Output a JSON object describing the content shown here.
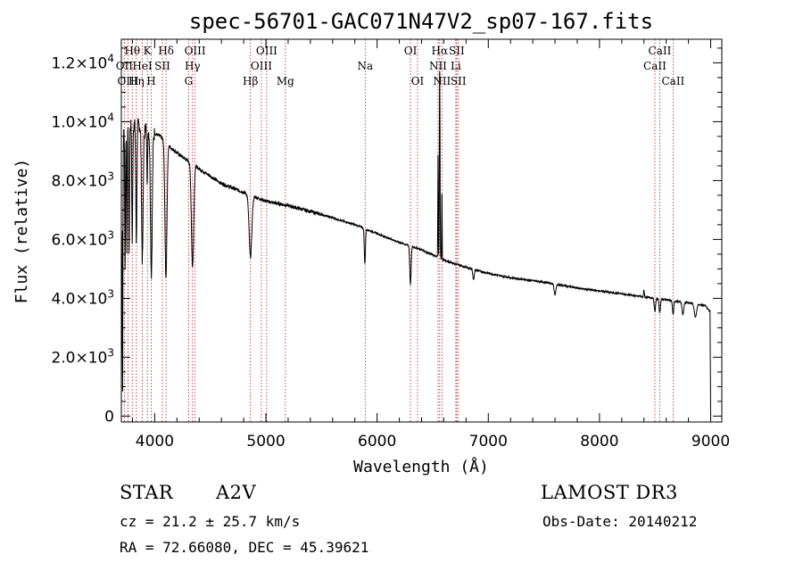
{
  "chart_data": {
    "type": "line",
    "title": "spec-56701-GAC071N47V2_sp07-167.fits",
    "xlabel": "Wavelength (Å)",
    "ylabel": "Flux (relative)",
    "xlim": [
      3700,
      9100
    ],
    "ylim": [
      -200,
      12800
    ],
    "x_ticks": [
      {
        "value": 4000,
        "label": "4000"
      },
      {
        "value": 5000,
        "label": "5000"
      },
      {
        "value": 6000,
        "label": "6000"
      },
      {
        "value": 7000,
        "label": "7000"
      },
      {
        "value": 8000,
        "label": "8000"
      },
      {
        "value": 9000,
        "label": "9000"
      }
    ],
    "y_ticks": [
      {
        "value": 0,
        "mant": "0",
        "exp": ""
      },
      {
        "value": 2000,
        "mant": "2.0×10",
        "exp": "3"
      },
      {
        "value": 4000,
        "mant": "4.0×10",
        "exp": "3"
      },
      {
        "value": 6000,
        "mant": "6.0×10",
        "exp": "3"
      },
      {
        "value": 8000,
        "mant": "8.0×10",
        "exp": "3"
      },
      {
        "value": 10000,
        "mant": "1.0×10",
        "exp": "4"
      },
      {
        "value": 12000,
        "mant": "1.2×10",
        "exp": "4"
      }
    ],
    "continuum": [
      [
        3700,
        9500
      ],
      [
        3780,
        9900
      ],
      [
        3850,
        9900
      ],
      [
        3950,
        9700
      ],
      [
        4050,
        9500
      ],
      [
        4150,
        9100
      ],
      [
        4250,
        8800
      ],
      [
        4400,
        8400
      ],
      [
        4600,
        7900
      ],
      [
        4800,
        7600
      ],
      [
        5000,
        7300
      ],
      [
        5200,
        7150
      ],
      [
        5500,
        6850
      ],
      [
        5800,
        6500
      ],
      [
        6000,
        6200
      ],
      [
        6200,
        5900
      ],
      [
        6400,
        5650
      ],
      [
        6600,
        5300
      ],
      [
        6800,
        5050
      ],
      [
        7000,
        4850
      ],
      [
        7200,
        4700
      ],
      [
        7500,
        4550
      ],
      [
        7800,
        4350
      ],
      [
        8000,
        4250
      ],
      [
        8300,
        4100
      ],
      [
        8600,
        3950
      ],
      [
        8800,
        3850
      ],
      [
        8950,
        3750
      ],
      [
        9000,
        3500
      ]
    ],
    "absorption": [
      {
        "center": 3711,
        "width": 3,
        "depth": 9000
      },
      {
        "center": 3734,
        "width": 3,
        "depth": 4500
      },
      {
        "center": 3750,
        "width": 3,
        "depth": 4200
      },
      {
        "center": 3770,
        "width": 3.5,
        "depth": 4200
      },
      {
        "center": 3798,
        "width": 4,
        "depth": 4000
      },
      {
        "center": 3835,
        "width": 5,
        "depth": 4000
      },
      {
        "center": 3889,
        "width": 7,
        "depth": 4500
      },
      {
        "center": 3933,
        "width": 3,
        "depth": 2000
      },
      {
        "center": 3970,
        "width": 8,
        "depth": 4800
      },
      {
        "center": 4101,
        "width": 9,
        "depth": 4600
      },
      {
        "center": 4340,
        "width": 10,
        "depth": 3500
      },
      {
        "center": 4861,
        "width": 12,
        "depth": 2100
      },
      {
        "center": 5890,
        "width": 5,
        "depth": 1200
      },
      {
        "center": 6300,
        "width": 6,
        "depth": 1300
      },
      {
        "center": 6867,
        "width": 6,
        "depth": 350
      },
      {
        "center": 7600,
        "width": 8,
        "depth": 350
      },
      {
        "center": 8498,
        "width": 6,
        "depth": 450
      },
      {
        "center": 8542,
        "width": 6,
        "depth": 450
      },
      {
        "center": 8662,
        "width": 6,
        "depth": 450
      },
      {
        "center": 8750,
        "width": 8,
        "depth": 400
      },
      {
        "center": 8863,
        "width": 10,
        "depth": 450
      }
    ],
    "emission": [
      {
        "center": 6563,
        "width": 3,
        "height": 6700
      },
      {
        "center": 6548,
        "width": 2,
        "height": 3500
      },
      {
        "center": 6583,
        "width": 2,
        "height": 2500
      },
      {
        "center": 8400,
        "width": 3,
        "height": 250
      }
    ],
    "lines": [
      {
        "label": "Hθ",
        "wave": 3798,
        "row": 0
      },
      {
        "label": "K",
        "wave": 3934,
        "row": 0
      },
      {
        "label": "Hδ",
        "wave": 4102,
        "row": 0
      },
      {
        "label": "OIII",
        "wave": 4363,
        "row": 0
      },
      {
        "label": "OIII",
        "wave": 5007,
        "row": 0
      },
      {
        "label": "OI",
        "wave": 6300,
        "row": 0
      },
      {
        "label": "Hα",
        "wave": 6563,
        "row": 0
      },
      {
        "label": "SII",
        "wave": 6716,
        "row": 0
      },
      {
        "label": "CaII",
        "wave": 8542,
        "row": 0
      },
      {
        "label": "OII",
        "wave": 3727,
        "row": 1
      },
      {
        "label": "HeI",
        "wave": 3889,
        "row": 1
      },
      {
        "label": "SII",
        "wave": 4069,
        "row": 1
      },
      {
        "label": "Hγ",
        "wave": 4340,
        "row": 1
      },
      {
        "label": "OIII",
        "wave": 4959,
        "row": 1
      },
      {
        "label": "Na",
        "wave": 5893,
        "row": 1
      },
      {
        "label": "NII",
        "wave": 6548,
        "row": 1
      },
      {
        "label": "Li",
        "wave": 6708,
        "row": 1
      },
      {
        "label": "CaII",
        "wave": 8498,
        "row": 1
      },
      {
        "label": "OIII",
        "wave": 3760,
        "row": 2
      },
      {
        "label": "Hη",
        "wave": 3835,
        "row": 2
      },
      {
        "label": "H",
        "wave": 3969,
        "row": 2
      },
      {
        "label": "G",
        "wave": 4305,
        "row": 2
      },
      {
        "label": "Hβ",
        "wave": 4861,
        "row": 2
      },
      {
        "label": "Mg",
        "wave": 5175,
        "row": 2
      },
      {
        "label": "OI",
        "wave": 6364,
        "row": 2
      },
      {
        "label": "NII",
        "wave": 6583,
        "row": 2
      },
      {
        "label": "SII",
        "wave": 6731,
        "row": 2
      },
      {
        "label": "CaII",
        "wave": 8662,
        "row": 2
      }
    ]
  },
  "info": {
    "class": "STAR",
    "subclass": "A2V",
    "survey": "LAMOST DR3",
    "cz": "cz = 21.2 ± 25.7 km/s",
    "obsdate": "Obs-Date: 20140212",
    "radec": "RA =  72.66080, DEC =  45.39621"
  },
  "colors": {
    "axis": "#000000",
    "spectrum": "#000000",
    "line_marker": "#b22222"
  }
}
